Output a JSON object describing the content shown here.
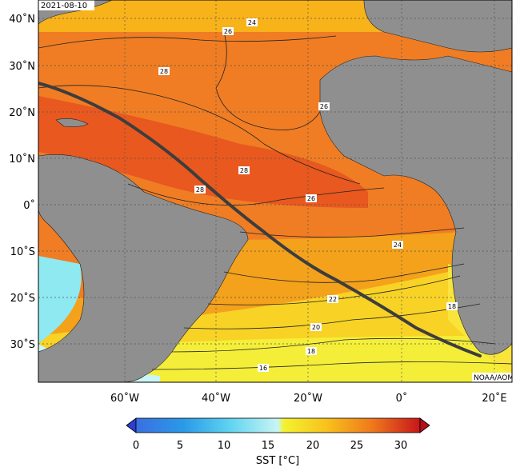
{
  "date": "2021-08-10",
  "credit": "NOAA/AOML",
  "lat_labels": [
    "40˚N",
    "30˚N",
    "20˚N",
    "10˚N",
    "0˚",
    "10˚S",
    "20˚S",
    "30˚S"
  ],
  "lon_labels": [
    "60˚W",
    "40˚W",
    "20˚W",
    "0˚",
    "20˚E"
  ],
  "contour_labels": [
    "24",
    "26",
    "28",
    "26",
    "28",
    "28",
    "26",
    "24",
    "22",
    "20",
    "18",
    "18",
    "16"
  ],
  "colorbar": {
    "ticks": [
      "0",
      "5",
      "10",
      "15",
      "20",
      "25",
      "30"
    ],
    "label": "SST [°C]",
    "colors": [
      "#3a6fe0",
      "#2a9be8",
      "#3fc4ee",
      "#7fe3f4",
      "#c9f5f4",
      "#f4f230",
      "#f8d21c",
      "#f8b016",
      "#f38a1a",
      "#e8641e",
      "#dc3b1c",
      "#c8161a"
    ]
  },
  "colors": {
    "land": "#8f8f8f",
    "ocean_warm": "#f07d23",
    "ocean_hot": "#e85a1f",
    "ocean_mid": "#f8ad1a",
    "ocean_cool": "#f7e23a",
    "ocean_cold": "#8ee9f1",
    "track": "#3d3d3d"
  }
}
